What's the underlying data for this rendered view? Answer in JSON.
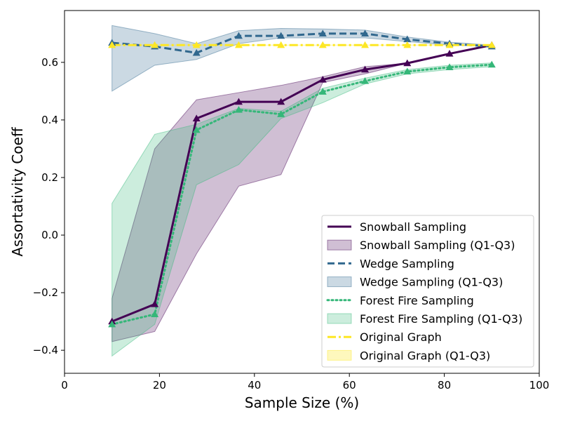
{
  "chart_data": {
    "type": "line",
    "xlabel": "Sample Size (%)",
    "ylabel": "Assortativity Coeff",
    "xlim": [
      0,
      100
    ],
    "ylim": [
      -0.48,
      0.78
    ],
    "xticks": [
      0,
      20,
      40,
      60,
      80,
      100
    ],
    "yticks": [
      -0.4,
      -0.2,
      0.0,
      0.2,
      0.4,
      0.6
    ],
    "ytick_labels": [
      "−0.4",
      "−0.2",
      "0.0",
      "0.2",
      "0.4",
      "0.6"
    ],
    "grid": false,
    "legend_position": "lower-right",
    "x": [
      10,
      19,
      27.8,
      36.7,
      45.6,
      54.4,
      63.3,
      72.2,
      81.1,
      90
    ],
    "series": [
      {
        "name": "Snowball Sampling",
        "band_name": "Snowball Sampling (Q1-Q3)",
        "color": "#440154",
        "line_style": "solid",
        "values": [
          -0.3,
          -0.24,
          0.405,
          0.463,
          0.463,
          0.54,
          0.575,
          0.597,
          0.63,
          0.66
        ],
        "q1": [
          -0.37,
          -0.335,
          -0.065,
          0.17,
          0.21,
          0.53,
          0.56,
          0.597,
          0.63,
          0.66
        ],
        "q3": [
          -0.22,
          0.3,
          0.47,
          0.495,
          0.52,
          0.55,
          0.585,
          0.597,
          0.63,
          0.66
        ]
      },
      {
        "name": "Wedge Sampling",
        "band_name": "Wedge Sampling (Q1-Q3)",
        "color": "#31688e",
        "line_style": "dashed",
        "values": [
          0.668,
          0.655,
          0.633,
          0.692,
          0.692,
          0.7,
          0.7,
          0.68,
          0.665,
          0.655
        ],
        "q1": [
          0.5,
          0.59,
          0.61,
          0.665,
          0.685,
          0.685,
          0.685,
          0.672,
          0.66,
          0.655
        ],
        "q3": [
          0.728,
          0.7,
          0.665,
          0.71,
          0.718,
          0.716,
          0.712,
          0.688,
          0.67,
          0.66
        ]
      },
      {
        "name": "Forest Fire Sampling",
        "band_name": "Forest Fire Sampling (Q1-Q3)",
        "color": "#35b779",
        "line_style": "dotted",
        "values": [
          -0.31,
          -0.275,
          0.365,
          0.435,
          0.42,
          0.498,
          0.535,
          0.568,
          0.583,
          0.592
        ],
        "q1": [
          -0.42,
          -0.31,
          0.175,
          0.245,
          0.405,
          0.46,
          0.525,
          0.56,
          0.575,
          0.585
        ],
        "q3": [
          0.11,
          0.35,
          0.385,
          0.44,
          0.43,
          0.51,
          0.545,
          0.575,
          0.59,
          0.598
        ]
      },
      {
        "name": "Original Graph",
        "band_name": "Original Graph (Q1-Q3)",
        "color": "#fde725",
        "line_style": "dashdot",
        "values": [
          0.66,
          0.66,
          0.66,
          0.66,
          0.66,
          0.66,
          0.66,
          0.66,
          0.66,
          0.66
        ],
        "q1": [
          0.66,
          0.66,
          0.66,
          0.66,
          0.66,
          0.66,
          0.66,
          0.66,
          0.66,
          0.66
        ],
        "q3": [
          0.66,
          0.66,
          0.66,
          0.66,
          0.66,
          0.66,
          0.66,
          0.66,
          0.66,
          0.66
        ]
      }
    ]
  }
}
